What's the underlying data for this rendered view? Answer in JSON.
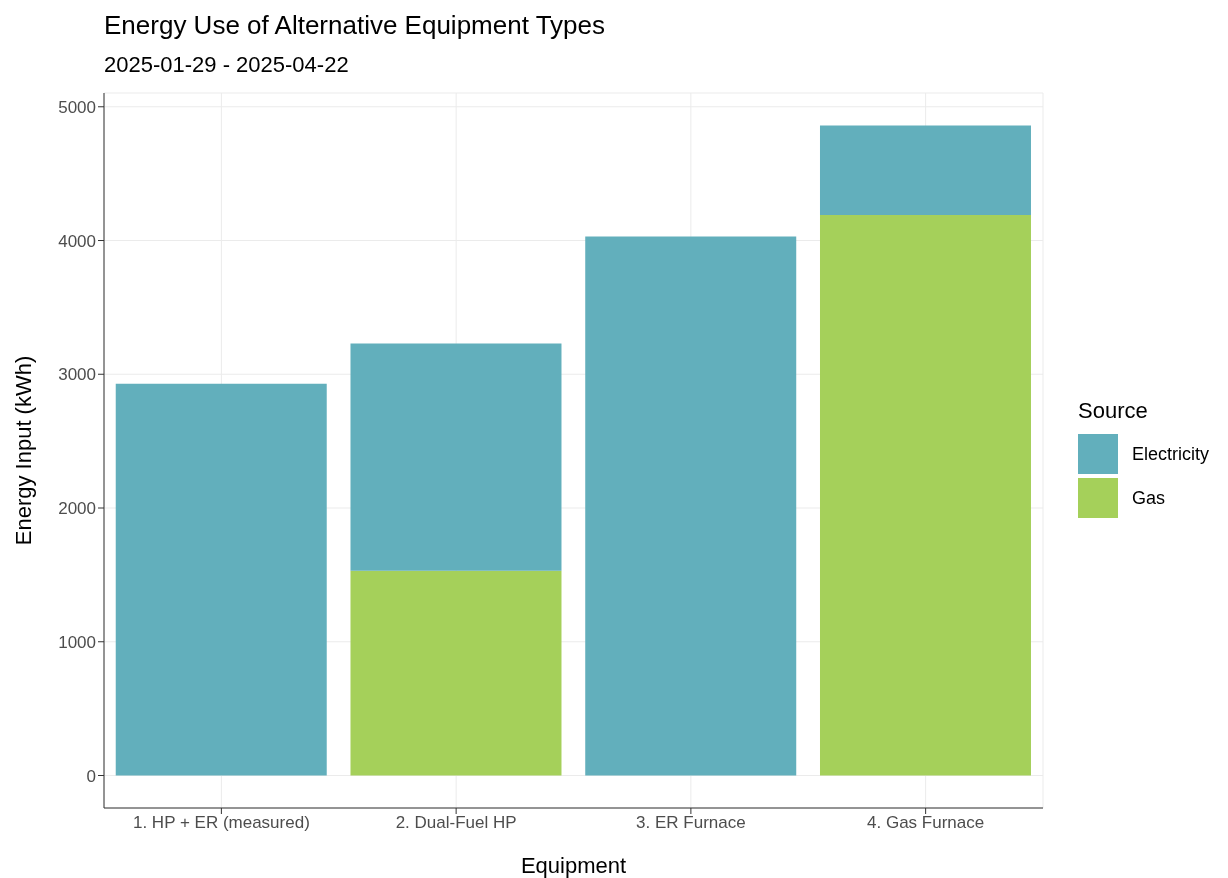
{
  "chart_data": {
    "type": "bar",
    "title": "Energy Use of Alternative Equipment Types",
    "subtitle": "2025-01-29 - 2025-04-22",
    "xlabel": "Equipment",
    "ylabel": "Energy Input (kWh)",
    "legend_title": "Source",
    "categories": [
      "1. HP + ER (measured)",
      "2. Dual-Fuel HP",
      "3. ER Furnace",
      "4. Gas Furnace"
    ],
    "series": [
      {
        "name": "Gas",
        "color": "#a5d05a",
        "values": [
          null,
          1530,
          null,
          4190
        ]
      },
      {
        "name": "Electricity",
        "color": "#62afbc",
        "values": [
          2930,
          1700,
          4030,
          670
        ]
      }
    ],
    "stacked": true,
    "ylim": [
      -243,
      5103
    ],
    "yticks": [
      0,
      1000,
      2000,
      3000,
      4000,
      5000
    ],
    "grid": true,
    "legend": "right"
  }
}
